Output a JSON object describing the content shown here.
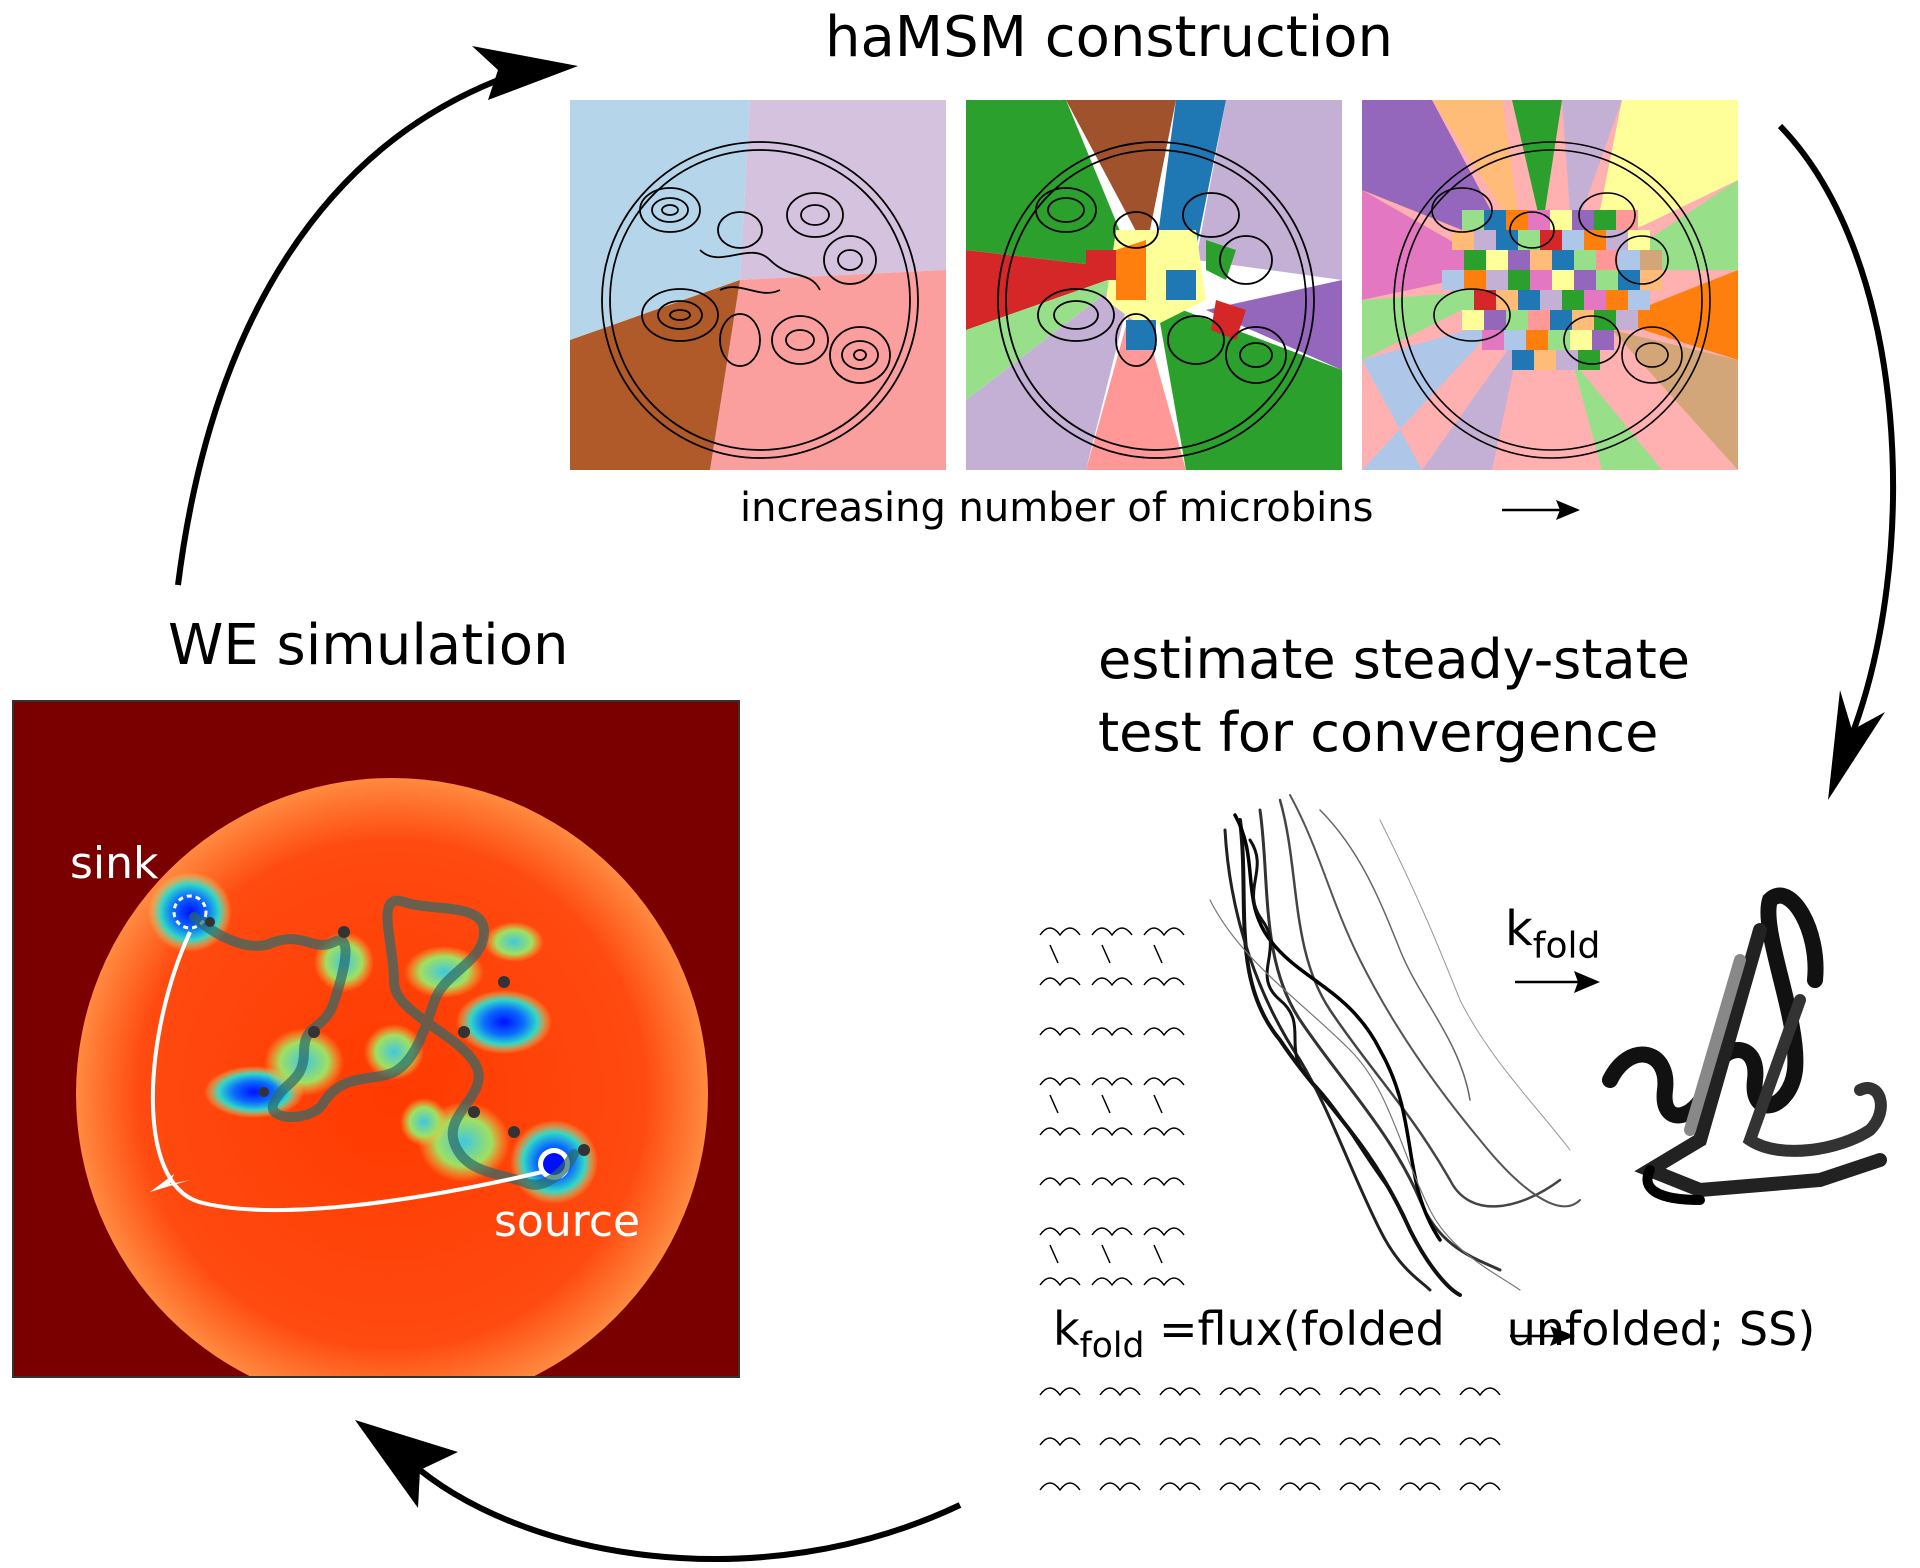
{
  "titles": {
    "hamsm": "haMSM construction",
    "we_simulation": "WE simulation",
    "estimate_line1": "estimate steady-state",
    "estimate_line2": "test for convergence"
  },
  "panel_caption": "increasing number of microbins",
  "simulation": {
    "sink_label": "sink",
    "source_label": "source"
  },
  "rate": {
    "k_symbol": "k",
    "k_subscript": "fold",
    "equation_rhs": "=flux(folded",
    "equation_tail": "unfolded; SS)"
  },
  "colors": {
    "background_dark_red": "#7a0000",
    "potential_orange": "#ff4500",
    "well_blue": "#0a1aff",
    "well_cyan": "#30d8c8",
    "arrow_black": "#000000",
    "path_white": "#ffffff"
  },
  "panels": [
    {
      "microbins_level": "coarse",
      "palette": [
        "#b5d6ea",
        "#d5c2de",
        "#fa9e9e",
        "#b05a2a"
      ]
    },
    {
      "microbins_level": "medium",
      "palette": [
        "#2ca02c",
        "#a0522d",
        "#1f77b4",
        "#c5b0d5",
        "#ff7f0e",
        "#9467bd",
        "#d62728",
        "#98df8a",
        "#ff9896",
        "#ffff99"
      ]
    },
    {
      "microbins_level": "fine",
      "palette": [
        "#ffb0b0",
        "#9467bd",
        "#98df8a",
        "#1f77b4",
        "#ff7f0e",
        "#e377c2",
        "#c5b0d5",
        "#ffbb78",
        "#aec7e8",
        "#d2a679",
        "#2ca02c",
        "#ffff99"
      ]
    }
  ]
}
